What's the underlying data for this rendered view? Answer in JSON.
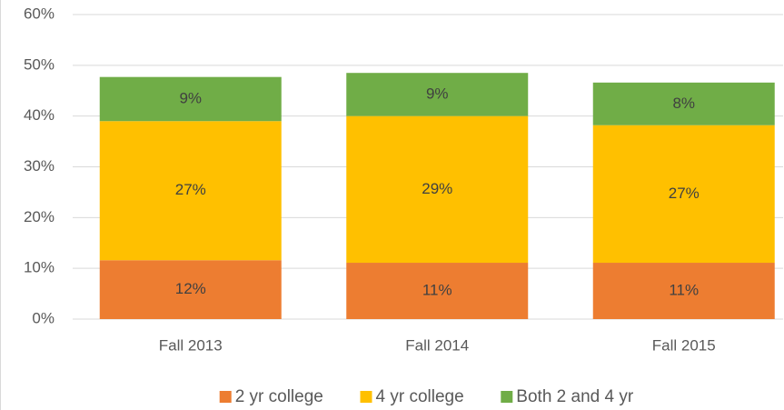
{
  "chart_data": {
    "type": "stacked_bar",
    "categories": [
      "Fall 2013",
      "Fall 2014",
      "Fall 2015"
    ],
    "series": [
      {
        "name": "2 yr college",
        "color": "#ed7d31",
        "values": [
          11.6,
          11.1,
          11.1
        ],
        "value_labels": [
          "12%",
          "11%",
          "11%"
        ]
      },
      {
        "name": "4 yr college",
        "color": "#ffc000",
        "values": [
          27.4,
          28.9,
          27.1
        ],
        "value_labels": [
          "27%",
          "29%",
          "27%"
        ]
      },
      {
        "name": "Both 2 and 4 yr",
        "color": "#70ad47",
        "values": [
          8.7,
          8.5,
          8.4
        ],
        "value_labels": [
          "9%",
          "9%",
          "8%"
        ]
      }
    ],
    "ylim": [
      0,
      60
    ],
    "yticks": [
      {
        "value": 0,
        "label": "0%"
      },
      {
        "value": 10,
        "label": "10%"
      },
      {
        "value": 20,
        "label": "20%"
      },
      {
        "value": 30,
        "label": "30%"
      },
      {
        "value": 40,
        "label": "40%"
      },
      {
        "value": 50,
        "label": "50%"
      },
      {
        "value": 60,
        "label": "60%"
      }
    ],
    "grid": true,
    "legend": "bottom"
  }
}
